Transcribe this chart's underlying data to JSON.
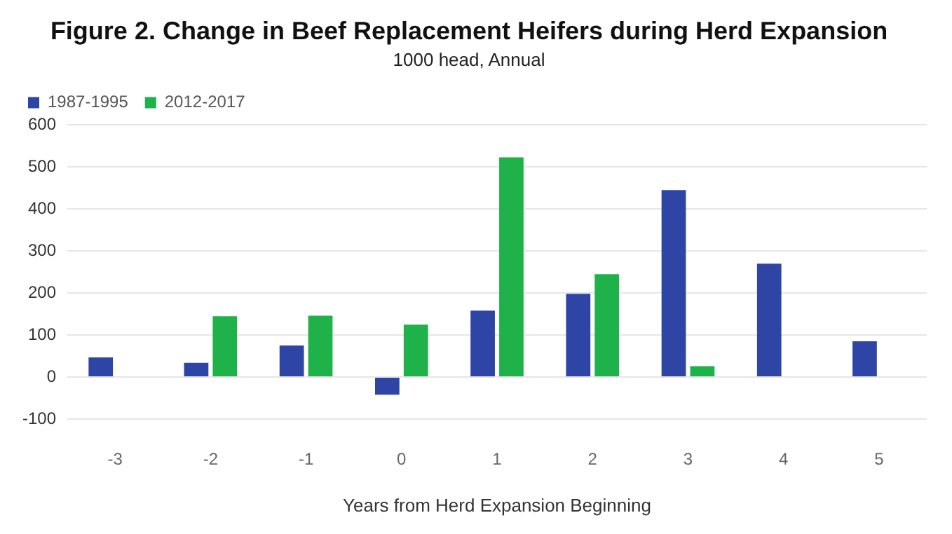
{
  "chart_data": {
    "type": "bar",
    "title": "Figure 2. Change in Beef Replacement Heifers during Herd Expansion",
    "subtitle": "1000 head, Annual",
    "xlabel": "Years from Herd Expansion Beginning",
    "categories": [
      "-3",
      "-2",
      "-1",
      "0",
      "1",
      "2",
      "3",
      "4",
      "5"
    ],
    "series": [
      {
        "name": "1987-1995",
        "color": "#2e45a5",
        "values": [
          47,
          34,
          75,
          -42,
          158,
          198,
          445,
          270,
          85
        ]
      },
      {
        "name": "2012-2017",
        "color": "#1fb24a",
        "values": [
          null,
          145,
          146,
          125,
          523,
          245,
          26,
          null,
          null
        ]
      }
    ],
    "ylim": [
      -100,
      600
    ],
    "yticks": [
      -100,
      0,
      100,
      200,
      300,
      400,
      500,
      600
    ],
    "grid": "y",
    "legend": "top"
  }
}
